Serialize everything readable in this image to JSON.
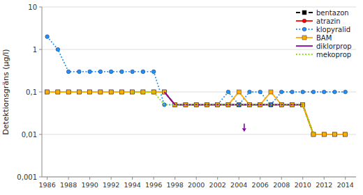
{
  "chart_data": {
    "type": "line",
    "ylabel": "Detektionsgräns (µg/l)",
    "log": "y",
    "grid": true,
    "legend": "upper right",
    "xlim": [
      1985.5,
      2015
    ],
    "ylim": [
      0.001,
      10
    ],
    "xticks": [
      1986,
      1988,
      1990,
      1992,
      1994,
      1996,
      1998,
      2000,
      2002,
      2004,
      2006,
      2008,
      2010,
      2012,
      2014
    ],
    "yticks": [
      {
        "value": 0.001,
        "label": "0,001"
      },
      {
        "value": 0.01,
        "label": "0,01"
      },
      {
        "value": 0.1,
        "label": "0,1"
      },
      1,
      10
    ],
    "series": [
      {
        "name": "bentazon",
        "color": "#000000",
        "line_style": "dashed",
        "marker": "square",
        "x": [
          1986,
          1987,
          1988,
          1989,
          1990,
          1991,
          1992,
          1993,
          1994,
          1995,
          1996,
          1997,
          1998,
          1999,
          2000,
          2001,
          2002,
          2003,
          2004,
          2005,
          2006,
          2007,
          2008,
          2009,
          2010,
          2011,
          2012,
          2013,
          2014
        ],
        "values": [
          0.1,
          0.1,
          0.1,
          0.1,
          0.1,
          0.1,
          0.1,
          0.1,
          0.1,
          0.1,
          0.1,
          0.1,
          0.05,
          0.05,
          0.05,
          0.05,
          0.05,
          0.05,
          0.05,
          0.05,
          0.05,
          0.05,
          0.05,
          0.05,
          0.05,
          0.01,
          0.01,
          0.01,
          0.01
        ]
      },
      {
        "name": "atrazin",
        "color": "#ff0000",
        "line_style": "solid",
        "marker": "circle",
        "x": [
          1996,
          1997,
          1998,
          1999,
          2000,
          2001,
          2002,
          2003,
          2004,
          2005,
          2006,
          2007,
          2008,
          2009,
          2010,
          2011
        ],
        "values": [
          0.1,
          0.1,
          0.05,
          0.05,
          0.05,
          0.05,
          0.05,
          0.05,
          0.05,
          0.05,
          0.05,
          0.05,
          0.05,
          0.05,
          0.05,
          0.01
        ]
      },
      {
        "name": "klopyralid",
        "color": "#1e90ff",
        "line_style": "dotted",
        "marker": "circle",
        "x": [
          1986,
          1987,
          1988,
          1989,
          1990,
          1991,
          1992,
          1993,
          1994,
          1995,
          1996,
          1997,
          1998,
          1999,
          2000,
          2001,
          2002,
          2003,
          2004,
          2005,
          2006,
          2007,
          2008,
          2009,
          2010,
          2011,
          2012,
          2013,
          2014
        ],
        "values": [
          2.0,
          1.0,
          0.3,
          0.3,
          0.3,
          0.3,
          0.3,
          0.3,
          0.3,
          0.3,
          0.3,
          0.05,
          0.05,
          0.05,
          0.05,
          0.05,
          0.05,
          0.1,
          0.05,
          0.1,
          0.1,
          0.05,
          0.1,
          0.1,
          0.1,
          0.1,
          0.1,
          0.1,
          0.1
        ]
      },
      {
        "name": "BAM",
        "color": "#ffaa00",
        "line_style": "solid",
        "marker": "square",
        "x": [
          1986,
          1987,
          1988,
          1989,
          1990,
          1991,
          1992,
          1993,
          1994,
          1995,
          1996,
          1997,
          1998,
          1999,
          2000,
          2001,
          2002,
          2003,
          2004,
          2005,
          2006,
          2007,
          2008,
          2009,
          2010,
          2011,
          2012,
          2013,
          2014
        ],
        "values": [
          0.1,
          0.1,
          0.1,
          0.1,
          0.1,
          0.1,
          0.1,
          0.1,
          0.1,
          0.1,
          0.1,
          0.1,
          0.05,
          0.05,
          0.05,
          0.05,
          0.05,
          0.05,
          0.1,
          0.05,
          0.05,
          0.1,
          0.05,
          0.05,
          0.05,
          0.01,
          0.01,
          0.01,
          0.01
        ]
      },
      {
        "name": "diklorprop",
        "color": "#8800aa",
        "line_style": "solid",
        "marker": "none",
        "x": [
          1997,
          1998,
          1999,
          2000,
          2001,
          2002,
          2003,
          2004,
          2005,
          2006,
          2007,
          2008,
          2009,
          2010
        ],
        "values": [
          0.1,
          0.05,
          0.05,
          0.05,
          0.05,
          0.05,
          0.05,
          0.05,
          0.05,
          0.05,
          0.05,
          0.05,
          0.05,
          0.05
        ]
      },
      {
        "name": "mekoprop",
        "color": "#88dd00",
        "line_style": "dotted",
        "marker": "none",
        "x": [
          1994,
          1995,
          1996,
          1997,
          1998,
          1999,
          2000,
          2001,
          2002,
          2003,
          2004,
          2005,
          2006,
          2007,
          2008,
          2009,
          2010,
          2011
        ],
        "values": [
          0.1,
          0.1,
          0.1,
          0.05,
          0.05,
          0.05,
          0.05,
          0.05,
          0.05,
          0.05,
          0.05,
          0.05,
          0.05,
          0.05,
          0.05,
          0.05,
          0.05,
          0.01
        ]
      }
    ],
    "annotations": [
      {
        "x": 2004.5,
        "y": 0.0115,
        "y_tail": 0.018,
        "color": "#8800aa"
      }
    ]
  }
}
